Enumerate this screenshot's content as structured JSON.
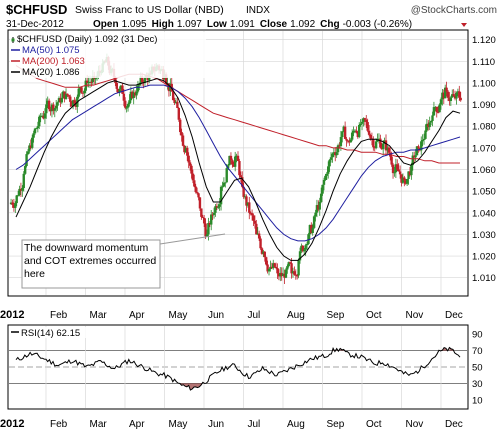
{
  "header": {
    "symbol": "$CHFUSD",
    "name": "Swiss Franc to US Dollar (NBD)",
    "exchange": "INDX",
    "copyright": "@StockCharts.com",
    "date": "31-Dec-2012",
    "open_label": "Open",
    "open": "1.095",
    "high_label": "High",
    "high": "1.097",
    "low_label": "Low",
    "low": "1.091",
    "close_label": "Close",
    "close": "1.092",
    "chg_label": "Chg",
    "chg": "-0.003 (-0.26%)"
  },
  "legend": [
    {
      "label": "$CHFUSD (Daily) 1.092 (31 Dec)",
      "color": "#000000",
      "kind": "candle"
    },
    {
      "label": "MA(50) 1.075",
      "color": "#1f1fa0",
      "kind": "line"
    },
    {
      "label": "MA(200) 1.063",
      "color": "#c0202a",
      "kind": "line"
    },
    {
      "label": "MA(20) 1.086",
      "color": "#000000",
      "kind": "line"
    }
  ],
  "annotation": "The downward momentum and COT extremes occurred here",
  "rsi_label": "RSI(14) 62.15",
  "colors": {
    "up": "#2a8a2a",
    "down": "#c0202a",
    "ma50": "#1f1fa0",
    "ma200": "#c0202a",
    "ma20": "#000000",
    "rsi_fill": "#a05050"
  },
  "chart_data": [
    {
      "type": "candlestick",
      "title": "$CHFUSD",
      "x_axis": {
        "start_label": "2012",
        "months": [
          "Feb",
          "Mar",
          "Apr",
          "May",
          "Jun",
          "Jul",
          "Aug",
          "Sep",
          "Oct",
          "Nov",
          "Dec"
        ]
      },
      "y_axis": {
        "side": "right",
        "ticks": [
          "1.010",
          "1.020",
          "1.030",
          "1.040",
          "1.050",
          "1.060",
          "1.070",
          "1.080",
          "1.090",
          "1.100",
          "1.110",
          "1.120"
        ],
        "ylim": [
          1.002,
          1.124
        ]
      },
      "grid": true,
      "weekly_close": [
        1.048,
        1.058,
        1.07,
        1.08,
        1.086,
        1.09,
        1.093,
        1.095,
        1.092,
        1.098,
        1.1,
        1.102,
        1.105,
        1.108,
        1.1,
        1.095,
        1.092,
        1.096,
        1.1,
        1.104,
        1.108,
        1.104,
        1.096,
        1.083,
        1.07,
        1.055,
        1.042,
        1.03,
        1.04,
        1.052,
        1.062,
        1.066,
        1.052,
        1.04,
        1.03,
        1.022,
        1.015,
        1.012,
        1.01,
        1.012,
        1.018,
        1.025,
        1.033,
        1.045,
        1.058,
        1.068,
        1.075,
        1.073,
        1.078,
        1.082,
        1.076,
        1.073,
        1.072,
        1.066,
        1.06,
        1.055,
        1.062,
        1.07,
        1.078,
        1.085,
        1.09,
        1.096,
        1.094,
        1.092
      ],
      "ma20": [
        1.038,
        1.045,
        1.052,
        1.06,
        1.068,
        1.075,
        1.081,
        1.086,
        1.089,
        1.092,
        1.094,
        1.096,
        1.098,
        1.1,
        1.101,
        1.1,
        1.099,
        1.099,
        1.1,
        1.101,
        1.102,
        1.101,
        1.098,
        1.093,
        1.085,
        1.075,
        1.063,
        1.052,
        1.045,
        1.045,
        1.05,
        1.055,
        1.056,
        1.052,
        1.045,
        1.037,
        1.03,
        1.024,
        1.02,
        1.018,
        1.018,
        1.021,
        1.026,
        1.033,
        1.041,
        1.05,
        1.058,
        1.064,
        1.069,
        1.073,
        1.074,
        1.074,
        1.073,
        1.071,
        1.067,
        1.063,
        1.062,
        1.064,
        1.068,
        1.073,
        1.078,
        1.084,
        1.087,
        1.086
      ],
      "ma50": [
        1.06,
        1.062,
        1.065,
        1.068,
        1.071,
        1.074,
        1.077,
        1.08,
        1.083,
        1.085,
        1.087,
        1.089,
        1.091,
        1.093,
        1.095,
        1.096,
        1.097,
        1.098,
        1.098,
        1.099,
        1.099,
        1.099,
        1.098,
        1.096,
        1.093,
        1.089,
        1.084,
        1.078,
        1.072,
        1.066,
        1.061,
        1.057,
        1.053,
        1.049,
        1.045,
        1.041,
        1.037,
        1.033,
        1.03,
        1.028,
        1.027,
        1.027,
        1.028,
        1.03,
        1.033,
        1.037,
        1.042,
        1.047,
        1.052,
        1.057,
        1.061,
        1.064,
        1.066,
        1.067,
        1.068,
        1.068,
        1.069,
        1.069,
        1.07,
        1.071,
        1.072,
        1.073,
        1.074,
        1.075
      ],
      "ma200": [
        1.108,
        1.106,
        1.104,
        1.102,
        1.101,
        1.1,
        1.099,
        1.098,
        1.098,
        1.098,
        1.099,
        1.099,
        1.1,
        1.101,
        1.102,
        1.103,
        1.104,
        1.104,
        1.104,
        1.103,
        1.102,
        1.1,
        1.098,
        1.096,
        1.094,
        1.092,
        1.09,
        1.088,
        1.086,
        1.085,
        1.084,
        1.083,
        1.082,
        1.081,
        1.08,
        1.079,
        1.078,
        1.077,
        1.076,
        1.075,
        1.074,
        1.073,
        1.072,
        1.071,
        1.071,
        1.07,
        1.07,
        1.069,
        1.069,
        1.068,
        1.068,
        1.068,
        1.067,
        1.067,
        1.066,
        1.066,
        1.065,
        1.065,
        1.064,
        1.064,
        1.063,
        1.063,
        1.063,
        1.063
      ]
    },
    {
      "type": "line",
      "title": "RSI(14) 62.15",
      "y_axis": {
        "side": "right",
        "ticks": [
          "10",
          "30",
          "50",
          "70",
          "90"
        ],
        "ylim": [
          0,
          100
        ]
      },
      "reference_lines": [
        30,
        50,
        70
      ],
      "values": [
        58,
        62,
        66,
        64,
        60,
        56,
        52,
        55,
        58,
        54,
        50,
        53,
        57,
        52,
        48,
        53,
        58,
        54,
        50,
        46,
        42,
        40,
        36,
        30,
        26,
        24,
        27,
        33,
        40,
        46,
        50,
        52,
        44,
        38,
        42,
        48,
        44,
        40,
        44,
        48,
        52,
        56,
        60,
        62,
        64,
        70,
        72,
        66,
        64,
        62,
        58,
        54,
        56,
        52,
        48,
        42,
        40,
        45,
        52,
        60,
        68,
        72,
        70,
        62
      ]
    }
  ]
}
